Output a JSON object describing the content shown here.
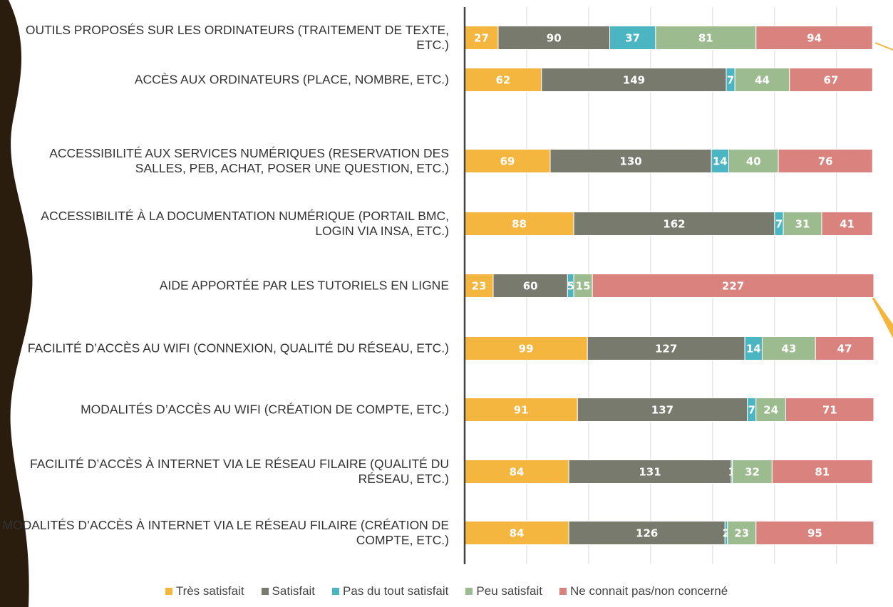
{
  "chart_data": {
    "type": "stacked-bar-horizontal",
    "categories": [
      "OUTILS PROPOSÉS SUR LES ORDINATEURS (TRAITEMENT DE TEXTE, ETC.)",
      "ACCÈS AUX ORDINATEURS (PLACE, NOMBRE, ETC.)",
      "ACCESSIBILITÉ AUX SERVICES NUMÉRIQUES (RESERVATION DES SALLES, PEB, ACHAT, POSER UNE QUESTION, ETC.)",
      "ACCESSIBILITÉ À LA DOCUMENTATION NUMÉRIQUE (PORTAIL BMC, LOGIN VIA INSA, ETC.)",
      "AIDE APPORTÉE PAR LES TUTORIELS EN LIGNE",
      "FACILITÉ D’ACCÈS AU WIFI (CONNEXION, QUALITÉ DU RÉSEAU, ETC.)",
      "MODALITÉS D’ACCÈS AU WIFI (CRÉATION DE COMPTE, ETC.)",
      "FACILITÉ D’ACCÈS À INTERNET VIA LE RÉSEAU FILAIRE (QUALITÉ DU RÉSEAU, ETC.)",
      "MODALITÉS D’ACCÈS À INTERNET VIA LE RÉSEAU FILAIRE (CRÉATION DE COMPTE, ETC.)"
    ],
    "series": [
      {
        "name": "Très satisfait",
        "color": "#f4b63f",
        "values": [
          27,
          62,
          69,
          88,
          23,
          99,
          91,
          84,
          84
        ]
      },
      {
        "name": "Satisfait",
        "color": "#777a6d",
        "values": [
          90,
          149,
          130,
          162,
          60,
          127,
          137,
          131,
          126
        ]
      },
      {
        "name": "Pas du tout satisfait",
        "color": "#4bb5c1",
        "values": [
          37,
          7,
          14,
          7,
          5,
          14,
          7,
          1,
          2
        ]
      },
      {
        "name": "Peu satisfait",
        "color": "#9cbc8f",
        "values": [
          81,
          44,
          40,
          31,
          15,
          43,
          24,
          32,
          23
        ]
      },
      {
        "name": "Ne connait pas/non concerné",
        "color": "#d9827e",
        "values": [
          94,
          67,
          76,
          41,
          227,
          47,
          71,
          81,
          95
        ]
      }
    ],
    "xlim": [
      0,
      330
    ],
    "xticks": [
      0,
      50,
      100,
      150,
      200,
      250,
      300
    ],
    "grid": true
  }
}
